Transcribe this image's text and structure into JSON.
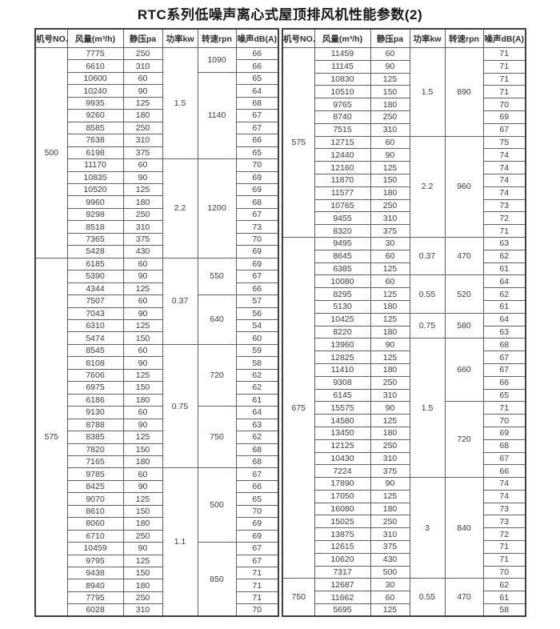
{
  "title": "RTC系列低噪声离心式屋顶排风机性能参数(2)",
  "headers": [
    "机号NO.",
    "风量(m³/h)",
    "静压pa",
    "功率kw",
    "转速rpn",
    "噪声dB(A)"
  ],
  "tables": [
    {
      "groups": [
        {
          "model": "500",
          "power_blocks": [
            {
              "power": "1.5",
              "speed_blocks": [
                {
                  "speed": "1090",
                  "rows": [
                    {
                      "flow": "7775",
                      "pressure": "250",
                      "noise": "66"
                    },
                    {
                      "flow": "6610",
                      "pressure": "310",
                      "noise": "66"
                    }
                  ]
                },
                {
                  "speed": "1140",
                  "rows": [
                    {
                      "flow": "10600",
                      "pressure": "60",
                      "noise": "65"
                    },
                    {
                      "flow": "10240",
                      "pressure": "90",
                      "noise": "64"
                    },
                    {
                      "flow": "9935",
                      "pressure": "125",
                      "noise": "68"
                    },
                    {
                      "flow": "9260",
                      "pressure": "180",
                      "noise": "67"
                    },
                    {
                      "flow": "8585",
                      "pressure": "250",
                      "noise": "67"
                    },
                    {
                      "flow": "7638",
                      "pressure": "310",
                      "noise": "66"
                    },
                    {
                      "flow": "6198",
                      "pressure": "375",
                      "noise": "65"
                    }
                  ]
                }
              ]
            },
            {
              "power": "2.2",
              "speed_blocks": [
                {
                  "speed": "1200",
                  "rows": [
                    {
                      "flow": "11170",
                      "pressure": "60",
                      "noise": "70"
                    },
                    {
                      "flow": "10835",
                      "pressure": "90",
                      "noise": "69"
                    },
                    {
                      "flow": "10520",
                      "pressure": "125",
                      "noise": "69"
                    },
                    {
                      "flow": "9960",
                      "pressure": "180",
                      "noise": "68"
                    },
                    {
                      "flow": "9298",
                      "pressure": "250",
                      "noise": "67"
                    },
                    {
                      "flow": "8518",
                      "pressure": "310",
                      "noise": "73"
                    },
                    {
                      "flow": "7365",
                      "pressure": "375",
                      "noise": "70"
                    },
                    {
                      "flow": "5428",
                      "pressure": "430",
                      "noise": "69"
                    }
                  ]
                }
              ]
            }
          ]
        },
        {
          "model": "575",
          "power_blocks": [
            {
              "power": "0.37",
              "speed_blocks": [
                {
                  "speed": "550",
                  "rows": [
                    {
                      "flow": "6185",
                      "pressure": "60",
                      "noise": "69"
                    },
                    {
                      "flow": "5390",
                      "pressure": "90",
                      "noise": "67"
                    },
                    {
                      "flow": "4344",
                      "pressure": "125",
                      "noise": "66"
                    }
                  ]
                },
                {
                  "speed": "640",
                  "rows": [
                    {
                      "flow": "7507",
                      "pressure": "60",
                      "noise": "57"
                    },
                    {
                      "flow": "7043",
                      "pressure": "90",
                      "noise": "56"
                    },
                    {
                      "flow": "6310",
                      "pressure": "125",
                      "noise": "54"
                    },
                    {
                      "flow": "5474",
                      "pressure": "150",
                      "noise": "60"
                    }
                  ]
                }
              ]
            },
            {
              "power": "0.75",
              "speed_blocks": [
                {
                  "speed": "720",
                  "rows": [
                    {
                      "flow": "8545",
                      "pressure": "60",
                      "noise": "59"
                    },
                    {
                      "flow": "8108",
                      "pressure": "90",
                      "noise": "58"
                    },
                    {
                      "flow": "7606",
                      "pressure": "125",
                      "noise": "62"
                    },
                    {
                      "flow": "6975",
                      "pressure": "150",
                      "noise": "62"
                    },
                    {
                      "flow": "6186",
                      "pressure": "180",
                      "noise": "61"
                    }
                  ]
                },
                {
                  "speed": "750",
                  "rows": [
                    {
                      "flow": "9130",
                      "pressure": "60",
                      "noise": "64"
                    },
                    {
                      "flow": "8788",
                      "pressure": "90",
                      "noise": "63"
                    },
                    {
                      "flow": "8385",
                      "pressure": "125",
                      "noise": "62"
                    },
                    {
                      "flow": "7820",
                      "pressure": "150",
                      "noise": "68"
                    },
                    {
                      "flow": "7165",
                      "pressure": "180",
                      "noise": "68"
                    }
                  ]
                }
              ]
            },
            {
              "power": "1.1",
              "speed_blocks": [
                {
                  "speed": "500",
                  "rows": [
                    {
                      "flow": "9785",
                      "pressure": "60",
                      "noise": "67"
                    },
                    {
                      "flow": "8425",
                      "pressure": "90",
                      "noise": "66"
                    },
                    {
                      "flow": "9070",
                      "pressure": "125",
                      "noise": "65"
                    },
                    {
                      "flow": "8610",
                      "pressure": "150",
                      "noise": "70"
                    },
                    {
                      "flow": "8060",
                      "pressure": "180",
                      "noise": "69"
                    },
                    {
                      "flow": "6710",
                      "pressure": "250",
                      "noise": "69"
                    }
                  ]
                },
                {
                  "speed": "850",
                  "rows": [
                    {
                      "flow": "10459",
                      "pressure": "90",
                      "noise": "67"
                    },
                    {
                      "flow": "9795",
                      "pressure": "125",
                      "noise": "67"
                    },
                    {
                      "flow": "9438",
                      "pressure": "150",
                      "noise": "71"
                    },
                    {
                      "flow": "8940",
                      "pressure": "180",
                      "noise": "71"
                    },
                    {
                      "flow": "7795",
                      "pressure": "250",
                      "noise": "71"
                    },
                    {
                      "flow": "6028",
                      "pressure": "310",
                      "noise": "70"
                    }
                  ]
                }
              ]
            }
          ]
        }
      ]
    },
    {
      "groups": [
        {
          "model": "575",
          "power_blocks": [
            {
              "power": "1.5",
              "speed_blocks": [
                {
                  "speed": "890",
                  "rows": [
                    {
                      "flow": "11459",
                      "pressure": "60",
                      "noise": "71"
                    },
                    {
                      "flow": "11145",
                      "pressure": "90",
                      "noise": "71"
                    },
                    {
                      "flow": "10830",
                      "pressure": "125",
                      "noise": "71"
                    },
                    {
                      "flow": "10510",
                      "pressure": "150",
                      "noise": "71"
                    },
                    {
                      "flow": "9765",
                      "pressure": "180",
                      "noise": "70"
                    },
                    {
                      "flow": "8740",
                      "pressure": "250",
                      "noise": "69"
                    },
                    {
                      "flow": "7515",
                      "pressure": "310",
                      "noise": "67"
                    }
                  ]
                }
              ]
            },
            {
              "power": "2.2",
              "speed_blocks": [
                {
                  "speed": "960",
                  "rows": [
                    {
                      "flow": "12715",
                      "pressure": "60",
                      "noise": "75"
                    },
                    {
                      "flow": "12440",
                      "pressure": "90",
                      "noise": "74"
                    },
                    {
                      "flow": "12160",
                      "pressure": "125",
                      "noise": "74"
                    },
                    {
                      "flow": "11870",
                      "pressure": "150",
                      "noise": "74"
                    },
                    {
                      "flow": "11577",
                      "pressure": "180",
                      "noise": "74"
                    },
                    {
                      "flow": "10765",
                      "pressure": "250",
                      "noise": "73"
                    },
                    {
                      "flow": "9455",
                      "pressure": "310",
                      "noise": "72"
                    },
                    {
                      "flow": "8320",
                      "pressure": "375",
                      "noise": "71"
                    }
                  ]
                }
              ]
            }
          ]
        },
        {
          "model": "675",
          "power_blocks": [
            {
              "power": "0.37",
              "speed_blocks": [
                {
                  "speed": "470",
                  "rows": [
                    {
                      "flow": "9495",
                      "pressure": "30",
                      "noise": "63"
                    },
                    {
                      "flow": "8645",
                      "pressure": "60",
                      "noise": "62"
                    },
                    {
                      "flow": "6385",
                      "pressure": "125",
                      "noise": "61"
                    }
                  ]
                }
              ]
            },
            {
              "power": "0.55",
              "speed_blocks": [
                {
                  "speed": "520",
                  "rows": [
                    {
                      "flow": "10080",
                      "pressure": "60",
                      "noise": "64"
                    },
                    {
                      "flow": "8295",
                      "pressure": "125",
                      "noise": "62"
                    },
                    {
                      "flow": "5130",
                      "pressure": "180",
                      "noise": "61"
                    }
                  ]
                }
              ]
            },
            {
              "power": "0.75",
              "speed_blocks": [
                {
                  "speed": "580",
                  "rows": [
                    {
                      "flow": "10425",
                      "pressure": "125",
                      "noise": "64"
                    },
                    {
                      "flow": "8220",
                      "pressure": "180",
                      "noise": "63"
                    }
                  ]
                }
              ]
            },
            {
              "power": "1.5",
              "speed_blocks": [
                {
                  "speed": "660",
                  "rows": [
                    {
                      "flow": "13960",
                      "pressure": "90",
                      "noise": "68"
                    },
                    {
                      "flow": "12825",
                      "pressure": "125",
                      "noise": "67"
                    },
                    {
                      "flow": "11410",
                      "pressure": "180",
                      "noise": "67"
                    },
                    {
                      "flow": "9308",
                      "pressure": "250",
                      "noise": "66"
                    },
                    {
                      "flow": "6145",
                      "pressure": "310",
                      "noise": "65"
                    }
                  ]
                },
                {
                  "speed": "720",
                  "rows": [
                    {
                      "flow": "15575",
                      "pressure": "90",
                      "noise": "71"
                    },
                    {
                      "flow": "14580",
                      "pressure": "125",
                      "noise": "70"
                    },
                    {
                      "flow": "13450",
                      "pressure": "180",
                      "noise": "69"
                    },
                    {
                      "flow": "12125",
                      "pressure": "250",
                      "noise": "68"
                    },
                    {
                      "flow": "10430",
                      "pressure": "310",
                      "noise": "67"
                    },
                    {
                      "flow": "7224",
                      "pressure": "375",
                      "noise": "66"
                    }
                  ]
                }
              ]
            },
            {
              "power": "3",
              "speed_blocks": [
                {
                  "speed": "840",
                  "rows": [
                    {
                      "flow": "17890",
                      "pressure": "90",
                      "noise": "74"
                    },
                    {
                      "flow": "17050",
                      "pressure": "125",
                      "noise": "74"
                    },
                    {
                      "flow": "16080",
                      "pressure": "180",
                      "noise": "73"
                    },
                    {
                      "flow": "15025",
                      "pressure": "250",
                      "noise": "73"
                    },
                    {
                      "flow": "13875",
                      "pressure": "310",
                      "noise": "72"
                    },
                    {
                      "flow": "12615",
                      "pressure": "375",
                      "noise": "71"
                    },
                    {
                      "flow": "10620",
                      "pressure": "430",
                      "noise": "71"
                    },
                    {
                      "flow": "7317",
                      "pressure": "500",
                      "noise": "70"
                    }
                  ]
                }
              ]
            }
          ]
        },
        {
          "model": "750",
          "power_blocks": [
            {
              "power": "0.55",
              "speed_blocks": [
                {
                  "speed": "470",
                  "rows": [
                    {
                      "flow": "12687",
                      "pressure": "30",
                      "noise": "62"
                    },
                    {
                      "flow": "11662",
                      "pressure": "60",
                      "noise": "61"
                    },
                    {
                      "flow": "5695",
                      "pressure": "125",
                      "noise": "58"
                    }
                  ]
                }
              ]
            }
          ]
        }
      ]
    }
  ]
}
